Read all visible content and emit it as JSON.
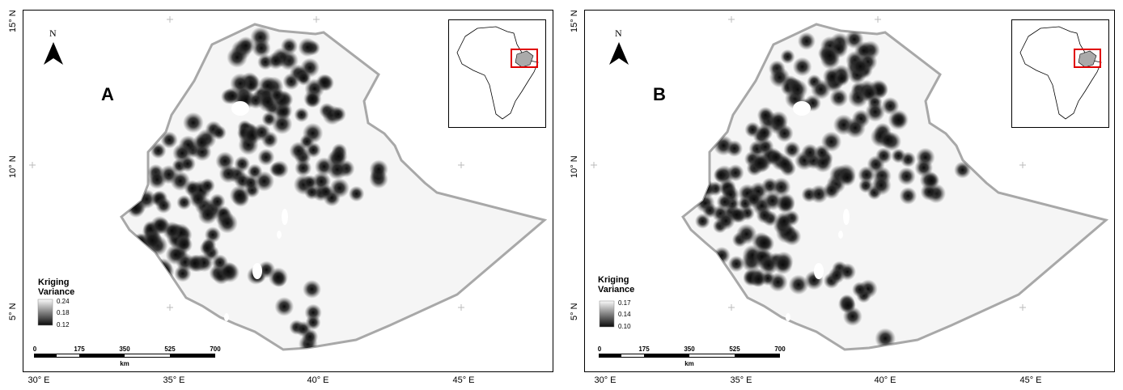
{
  "panels": [
    {
      "letter": "A",
      "north": "N",
      "legend": {
        "title_line1": "Kriging",
        "title_line2": "Variance",
        "max": "0.24",
        "mid": "0.18",
        "min": "0.12"
      }
    },
    {
      "letter": "B",
      "north": "N",
      "legend": {
        "title_line1": "Kriging",
        "title_line2": "Variance",
        "max": "0.17",
        "mid": "0.14",
        "min": "0.10"
      }
    }
  ],
  "axes": {
    "lat_labels": [
      "15° N",
      "10° N",
      "5° N"
    ],
    "lon_labels": [
      "30° E",
      "35° E",
      "40° E",
      "45° E"
    ]
  },
  "scalebar": {
    "ticks": [
      "0",
      "175",
      "350",
      "525",
      "700"
    ],
    "unit": "km"
  },
  "colors": {
    "boundary": "#a8a8a8",
    "inset_box": "#e00000",
    "dark": "#111111",
    "light": "#f4f4f4"
  }
}
